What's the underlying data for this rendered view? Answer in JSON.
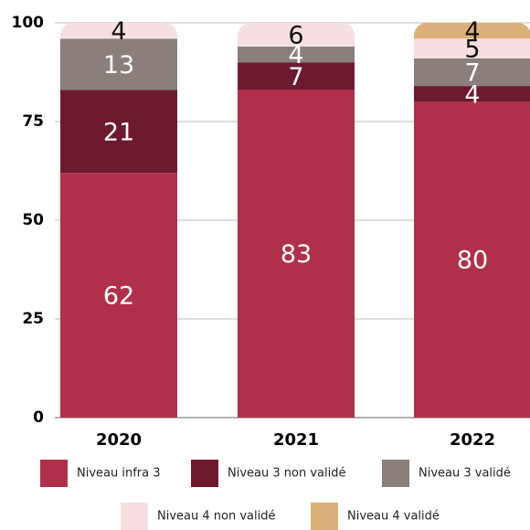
{
  "chart_data": {
    "type": "stacked_bar",
    "categories": [
      "2020",
      "2021",
      "2022"
    ],
    "series": [
      {
        "name": "Niveau infra 3",
        "color": "#b0304b",
        "values": [
          62,
          83,
          80
        ]
      },
      {
        "name": "Niveau 3 non validé",
        "color": "#6e1a2e",
        "values": [
          21,
          7,
          4
        ]
      },
      {
        "name": "Niveau 3 validé",
        "color": "#8a7f7b",
        "values": [
          13,
          4,
          7
        ]
      },
      {
        "name": "Niveau 4 non validé",
        "color": "#f6dfe0",
        "values": [
          4,
          6,
          5
        ]
      },
      {
        "name": "Niveau 4 validé",
        "color": "#dcb07a",
        "values": [
          null,
          null,
          4
        ]
      }
    ],
    "ylim": [
      0,
      100
    ],
    "yticks": [
      0,
      25,
      50,
      75,
      100
    ],
    "grid": true
  }
}
